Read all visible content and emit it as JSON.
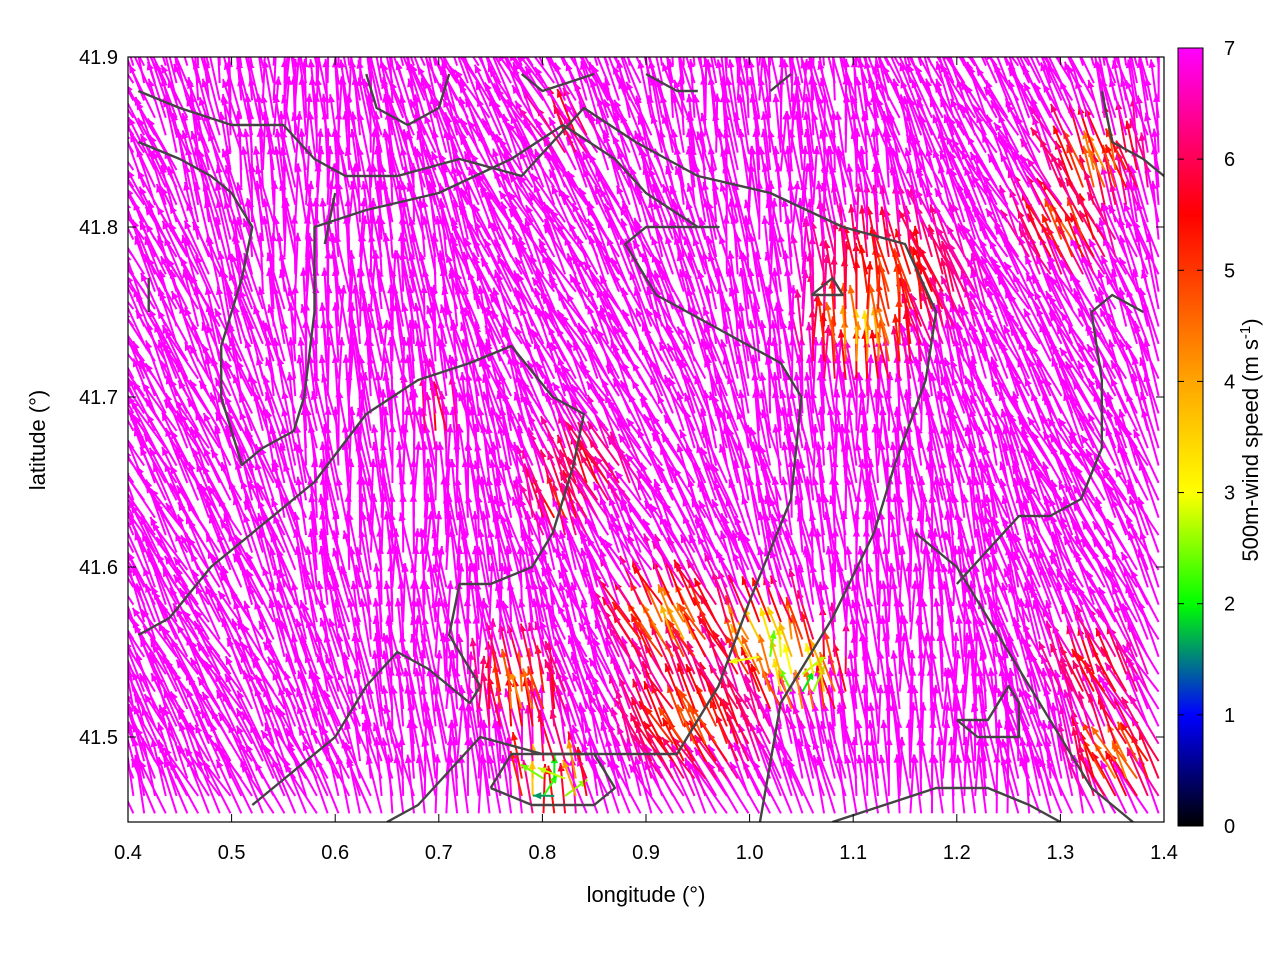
{
  "chart_data": {
    "type": "quiver",
    "xlabel": "longitude (°)",
    "ylabel": "latitude (°)",
    "colorbar_label": "500m-wind speed (m s",
    "colorbar_label_sup": "-1",
    "colorbar_label_end": ")",
    "xlim": [
      0.4,
      1.4
    ],
    "ylim": [
      41.45,
      41.9
    ],
    "clim": [
      0,
      7
    ],
    "x_ticks": [
      0.4,
      0.5,
      0.6,
      0.7,
      0.8,
      0.9,
      1.0,
      1.1,
      1.2,
      1.3,
      1.4
    ],
    "x_tick_labels": [
      "0.4",
      "0.5",
      "0.6",
      "0.7",
      "0.8",
      "0.9",
      "1.0",
      "1.1",
      "1.2",
      "1.3",
      "1.4"
    ],
    "y_ticks": [
      41.5,
      41.6,
      41.7,
      41.8,
      41.9
    ],
    "y_tick_labels": [
      "41.5",
      "41.6",
      "41.7",
      "41.8",
      "41.9"
    ],
    "cb_ticks": [
      0,
      1,
      2,
      3,
      4,
      5,
      6,
      7
    ],
    "cb_tick_labels": [
      "0",
      "1",
      "2",
      "3",
      "4",
      "5",
      "6",
      "7"
    ],
    "colormap": [
      "#000000",
      "#0000ff",
      "#00ff00",
      "#ffff00",
      "#ffa500",
      "#ff0000",
      "#ff00ff"
    ],
    "contours": [
      [
        [
          0.41,
          41.88
        ],
        [
          0.45,
          41.87
        ],
        [
          0.5,
          41.86
        ],
        [
          0.55,
          41.86
        ],
        [
          0.58,
          41.84
        ],
        [
          0.61,
          41.83
        ],
        [
          0.66,
          41.83
        ],
        [
          0.72,
          41.84
        ],
        [
          0.78,
          41.83
        ],
        [
          0.84,
          41.87
        ],
        [
          0.89,
          41.85
        ],
        [
          0.95,
          41.83
        ],
        [
          1.02,
          41.82
        ],
        [
          1.09,
          41.8
        ],
        [
          1.15,
          41.79
        ],
        [
          1.18,
          41.75
        ],
        [
          1.17,
          41.71
        ],
        [
          1.14,
          41.66
        ],
        [
          1.12,
          41.62
        ],
        [
          1.08,
          41.57
        ],
        [
          1.03,
          41.52
        ],
        [
          1.01,
          41.45
        ]
      ],
      [
        [
          0.41,
          41.85
        ],
        [
          0.45,
          41.84
        ],
        [
          0.48,
          41.83
        ],
        [
          0.5,
          41.82
        ],
        [
          0.52,
          41.8
        ],
        [
          0.51,
          41.77
        ],
        [
          0.49,
          41.73
        ],
        [
          0.49,
          41.7
        ],
        [
          0.51,
          41.66
        ],
        [
          0.53,
          41.67
        ],
        [
          0.56,
          41.68
        ],
        [
          0.57,
          41.7
        ],
        [
          0.58,
          41.75
        ],
        [
          0.58,
          41.8
        ],
        [
          0.63,
          41.81
        ],
        [
          0.7,
          41.82
        ],
        [
          0.77,
          41.84
        ],
        [
          0.82,
          41.86
        ],
        [
          0.87,
          41.84
        ],
        [
          0.9,
          41.82
        ],
        [
          0.95,
          41.8
        ],
        [
          0.97,
          41.8
        ],
        [
          0.9,
          41.8
        ],
        [
          0.88,
          41.79
        ],
        [
          0.91,
          41.76
        ],
        [
          0.97,
          41.74
        ],
        [
          1.03,
          41.72
        ],
        [
          1.05,
          41.7
        ],
        [
          1.04,
          41.64
        ],
        [
          1.0,
          41.58
        ],
        [
          0.97,
          41.53
        ],
        [
          0.93,
          41.49
        ],
        [
          0.86,
          41.49
        ],
        [
          0.8,
          41.49
        ],
        [
          0.74,
          41.5
        ],
        [
          0.71,
          41.48
        ],
        [
          0.68,
          41.46
        ],
        [
          0.65,
          41.45
        ]
      ],
      [
        [
          0.41,
          41.56
        ],
        [
          0.44,
          41.57
        ],
        [
          0.48,
          41.6
        ],
        [
          0.52,
          41.62
        ],
        [
          0.58,
          41.65
        ],
        [
          0.63,
          41.69
        ],
        [
          0.68,
          41.71
        ],
        [
          0.73,
          41.72
        ],
        [
          0.77,
          41.73
        ],
        [
          0.81,
          41.7
        ],
        [
          0.84,
          41.69
        ],
        [
          0.83,
          41.66
        ],
        [
          0.81,
          41.62
        ],
        [
          0.79,
          41.6
        ],
        [
          0.75,
          41.59
        ],
        [
          0.72,
          41.59
        ],
        [
          0.71,
          41.56
        ],
        [
          0.74,
          41.53
        ],
        [
          0.73,
          41.52
        ],
        [
          0.69,
          41.54
        ],
        [
          0.66,
          41.55
        ],
        [
          0.63,
          41.53
        ],
        [
          0.6,
          41.5
        ],
        [
          0.56,
          41.48
        ],
        [
          0.52,
          41.46
        ]
      ],
      [
        [
          0.75,
          41.47
        ],
        [
          0.77,
          41.49
        ],
        [
          0.81,
          41.49
        ],
        [
          0.85,
          41.49
        ],
        [
          0.87,
          41.47
        ],
        [
          0.85,
          41.46
        ],
        [
          0.79,
          41.46
        ],
        [
          0.75,
          41.47
        ]
      ],
      [
        [
          1.06,
          41.76
        ],
        [
          1.09,
          41.76
        ],
        [
          1.08,
          41.77
        ],
        [
          1.06,
          41.76
        ]
      ],
      [
        [
          1.16,
          41.62
        ],
        [
          1.2,
          41.6
        ],
        [
          1.24,
          41.56
        ],
        [
          1.28,
          41.52
        ],
        [
          1.31,
          41.49
        ],
        [
          1.33,
          41.47
        ],
        [
          1.35,
          41.46
        ],
        [
          1.37,
          41.45
        ]
      ],
      [
        [
          1.38,
          41.75
        ],
        [
          1.35,
          41.76
        ],
        [
          1.33,
          41.75
        ],
        [
          1.34,
          41.71
        ],
        [
          1.34,
          41.67
        ],
        [
          1.32,
          41.64
        ],
        [
          1.29,
          41.63
        ],
        [
          1.26,
          41.63
        ],
        [
          1.23,
          41.61
        ],
        [
          1.2,
          41.59
        ]
      ],
      [
        [
          1.2,
          41.51
        ],
        [
          1.23,
          41.51
        ],
        [
          1.25,
          41.53
        ],
        [
          1.26,
          41.52
        ],
        [
          1.26,
          41.5
        ],
        [
          1.22,
          41.5
        ],
        [
          1.2,
          41.51
        ]
      ],
      [
        [
          1.3,
          41.45
        ],
        [
          1.27,
          41.46
        ],
        [
          1.23,
          41.47
        ],
        [
          1.18,
          41.47
        ],
        [
          1.13,
          41.46
        ],
        [
          1.08,
          41.45
        ]
      ],
      [
        [
          1.34,
          41.88
        ],
        [
          1.35,
          41.85
        ],
        [
          1.38,
          41.84
        ],
        [
          1.4,
          41.83
        ]
      ],
      [
        [
          0.63,
          41.89
        ],
        [
          0.64,
          41.87
        ],
        [
          0.67,
          41.86
        ],
        [
          0.7,
          41.87
        ],
        [
          0.71,
          41.89
        ]
      ],
      [
        [
          0.78,
          41.89
        ],
        [
          0.8,
          41.88
        ],
        [
          0.85,
          41.89
        ]
      ],
      [
        [
          0.9,
          41.89
        ],
        [
          0.93,
          41.88
        ],
        [
          0.95,
          41.88
        ]
      ],
      [
        [
          1.02,
          41.88
        ],
        [
          1.04,
          41.89
        ]
      ],
      [
        [
          0.42,
          41.77
        ],
        [
          0.42,
          41.75
        ]
      ],
      [
        [
          0.59,
          41.79
        ],
        [
          0.6,
          41.82
        ]
      ]
    ],
    "wind_regions": [
      {
        "lon": 1.11,
        "lat": 41.73,
        "speed": 4.0,
        "radius": 0.05
      },
      {
        "lon": 1.14,
        "lat": 41.76,
        "speed": 5.2,
        "radius": 0.07
      },
      {
        "lon": 0.82,
        "lat": 41.63,
        "speed": 5.5,
        "radius": 0.03
      },
      {
        "lon": 0.85,
        "lat": 41.65,
        "speed": 5.8,
        "radius": 0.04
      },
      {
        "lon": 0.93,
        "lat": 41.56,
        "speed": 4.3,
        "radius": 0.05
      },
      {
        "lon": 1.02,
        "lat": 41.55,
        "speed": 3.0,
        "radius": 0.04
      },
      {
        "lon": 1.05,
        "lat": 41.53,
        "speed": 2.5,
        "radius": 0.04
      },
      {
        "lon": 0.95,
        "lat": 41.5,
        "speed": 5.0,
        "radius": 0.06
      },
      {
        "lon": 0.81,
        "lat": 41.47,
        "speed": 1.5,
        "radius": 0.03
      },
      {
        "lon": 0.78,
        "lat": 41.52,
        "speed": 4.5,
        "radius": 0.04
      },
      {
        "lon": 0.83,
        "lat": 41.85,
        "speed": 5.5,
        "radius": 0.02
      },
      {
        "lon": 1.34,
        "lat": 41.83,
        "speed": 4.5,
        "radius": 0.04
      },
      {
        "lon": 1.31,
        "lat": 41.79,
        "speed": 5.0,
        "radius": 0.04
      },
      {
        "lon": 1.36,
        "lat": 41.48,
        "speed": 4.5,
        "radius": 0.04
      },
      {
        "lon": 1.34,
        "lat": 41.53,
        "speed": 5.5,
        "radius": 0.04
      },
      {
        "lon": 0.7,
        "lat": 41.68,
        "speed": 5.8,
        "radius": 0.02
      }
    ]
  }
}
